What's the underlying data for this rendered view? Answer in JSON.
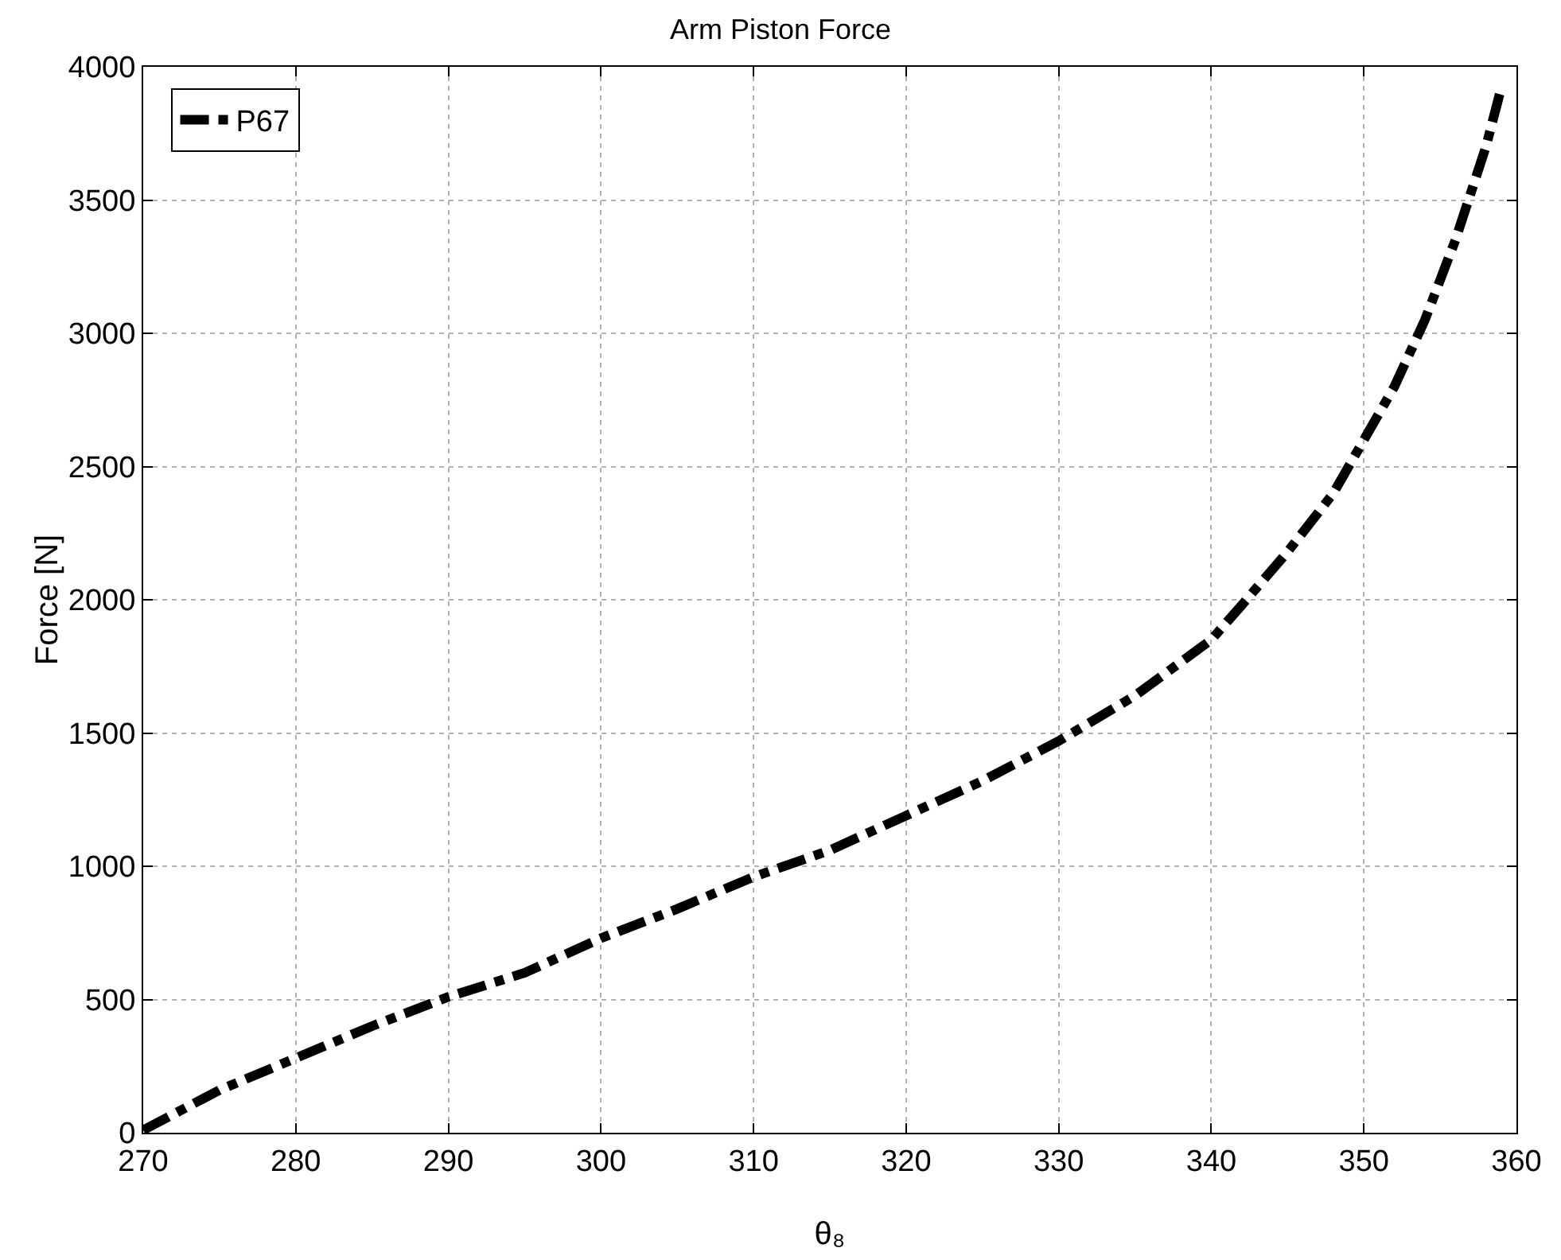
{
  "chart_data": {
    "type": "line",
    "title": "Arm Piston Force",
    "xlabel": "θ₈",
    "ylabel": "Force [N]",
    "x": [
      270,
      275,
      280,
      285,
      290,
      295,
      300,
      305,
      310,
      315,
      320,
      325,
      330,
      335,
      340,
      342,
      345,
      348,
      350,
      352,
      354,
      356,
      358,
      359
    ],
    "series": [
      {
        "name": "P67",
        "color": "#000000",
        "values": [
          10,
          160,
          280,
          400,
          510,
          600,
          730,
          840,
          960,
          1060,
          1190,
          1320,
          1470,
          1640,
          1850,
          1980,
          2180,
          2400,
          2600,
          2800,
          3050,
          3350,
          3700,
          3920
        ]
      }
    ],
    "xlim": [
      270,
      360
    ],
    "xticks": [
      270,
      280,
      290,
      300,
      310,
      320,
      330,
      340,
      350,
      360
    ],
    "ylim": [
      0,
      4000
    ],
    "yticks": [
      0,
      500,
      1000,
      1500,
      2000,
      2500,
      3000,
      3500,
      4000
    ],
    "grid": true,
    "legend": "top left",
    "marker": "none",
    "line_style": "dashed"
  }
}
